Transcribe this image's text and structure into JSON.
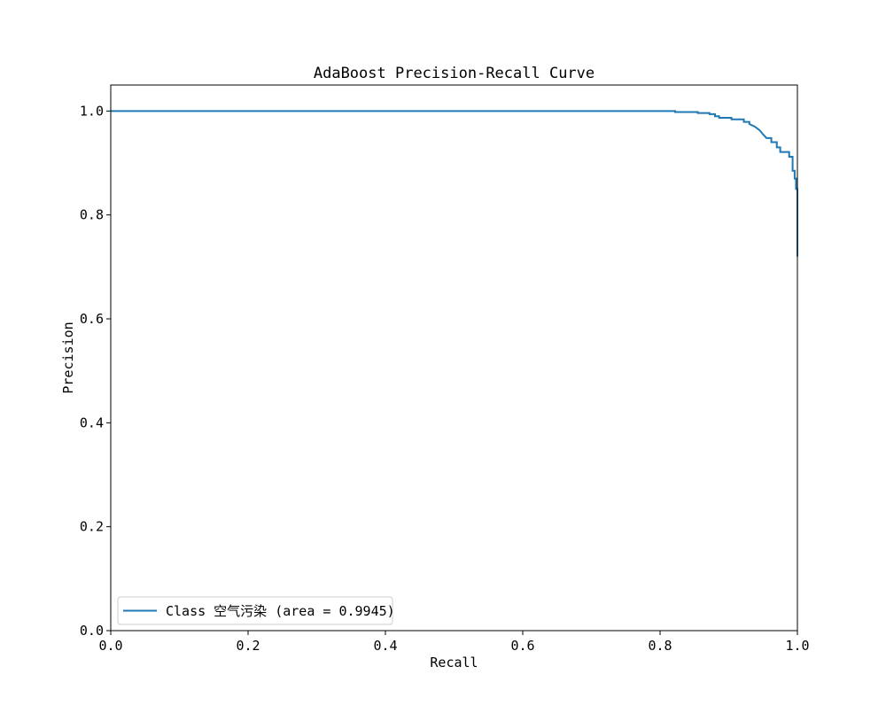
{
  "chart_data": {
    "type": "line",
    "title": "AdaBoost Precision-Recall Curve",
    "xlabel": "Recall",
    "ylabel": "Precision",
    "xlim": [
      0.0,
      1.0
    ],
    "ylim": [
      0.0,
      1.05
    ],
    "xticks": [
      0.0,
      0.2,
      0.4,
      0.6,
      0.8,
      1.0
    ],
    "yticks": [
      0.0,
      0.2,
      0.4,
      0.6,
      0.8,
      1.0
    ],
    "xtick_labels": [
      "0.0",
      "0.2",
      "0.4",
      "0.6",
      "0.8",
      "1.0"
    ],
    "ytick_labels": [
      "0.0",
      "0.2",
      "0.4",
      "0.6",
      "0.8",
      "1.0"
    ],
    "grid": false,
    "legend_position": "lower-left",
    "series": [
      {
        "name": "Class 空气污染 (area = 0.9945)",
        "color": "#1f77b4",
        "points": [
          [
            0.0,
            1.0
          ],
          [
            0.822,
            1.0
          ],
          [
            0.822,
            0.998
          ],
          [
            0.855,
            0.998
          ],
          [
            0.855,
            0.996
          ],
          [
            0.872,
            0.996
          ],
          [
            0.872,
            0.994
          ],
          [
            0.88,
            0.994
          ],
          [
            0.88,
            0.99
          ],
          [
            0.886,
            0.99
          ],
          [
            0.886,
            0.987
          ],
          [
            0.904,
            0.987
          ],
          [
            0.904,
            0.984
          ],
          [
            0.922,
            0.984
          ],
          [
            0.922,
            0.979
          ],
          [
            0.93,
            0.979
          ],
          [
            0.93,
            0.975
          ],
          [
            0.938,
            0.97
          ],
          [
            0.945,
            0.963
          ],
          [
            0.95,
            0.955
          ],
          [
            0.955,
            0.948
          ],
          [
            0.962,
            0.948
          ],
          [
            0.962,
            0.94
          ],
          [
            0.97,
            0.94
          ],
          [
            0.97,
            0.93
          ],
          [
            0.975,
            0.93
          ],
          [
            0.975,
            0.921
          ],
          [
            0.988,
            0.921
          ],
          [
            0.988,
            0.912
          ],
          [
            0.993,
            0.912
          ],
          [
            0.993,
            0.885
          ],
          [
            0.996,
            0.885
          ],
          [
            0.996,
            0.87
          ],
          [
            0.998,
            0.87
          ],
          [
            0.998,
            0.85
          ],
          [
            1.0,
            0.85
          ],
          [
            1.0,
            0.72
          ]
        ]
      }
    ]
  }
}
